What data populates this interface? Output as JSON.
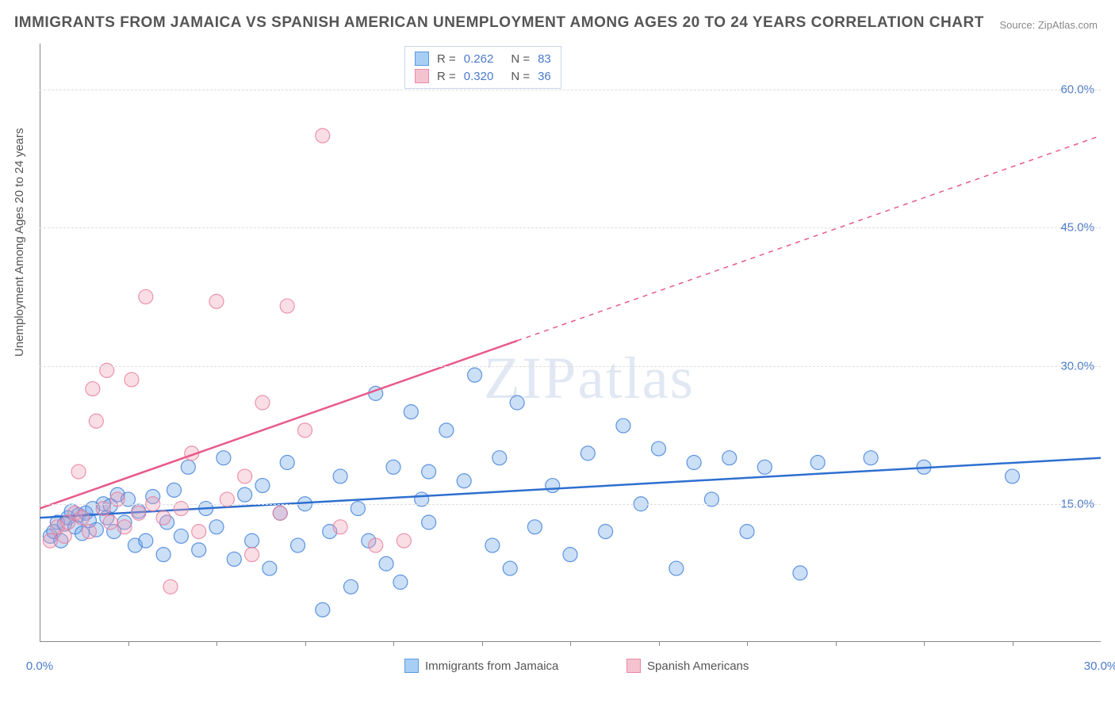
{
  "title": "IMMIGRANTS FROM JAMAICA VS SPANISH AMERICAN UNEMPLOYMENT AMONG AGES 20 TO 24 YEARS CORRELATION CHART",
  "source": "Source: ZipAtlas.com",
  "ylabel": "Unemployment Among Ages 20 to 24 years",
  "watermark": "ZIPatlas",
  "chart": {
    "type": "scatter",
    "xlim": [
      0,
      30
    ],
    "ylim": [
      0,
      65
    ],
    "xticks": [
      0,
      30
    ],
    "xtick_labels": [
      "0.0%",
      "30.0%"
    ],
    "yticks": [
      15,
      30,
      45,
      60
    ],
    "ytick_labels": [
      "15.0%",
      "30.0%",
      "45.0%",
      "60.0%"
    ],
    "grid_color": "#dddddd",
    "axis_color": "#888888",
    "background_color": "#ffffff",
    "tick_color": "#4a7bc8",
    "marker_radius": 9,
    "marker_opacity": 0.35,
    "marker_stroke_opacity": 0.8,
    "line_width": 2.5,
    "minor_ticks_x": [
      2.5,
      5,
      7.5,
      10,
      12.5,
      15,
      17.5,
      20,
      22.5,
      25,
      27.5
    ],
    "series": [
      {
        "name": "Immigrants from Jamaica",
        "color": "#6ba3e8",
        "stroke": "#3b7dd8",
        "line_color": "#2e6fd0",
        "R": "0.262",
        "N": "83",
        "trend": {
          "x1": 0,
          "y1": 13.5,
          "x2": 30,
          "y2": 20.0,
          "solid_until_x": 30
        },
        "points": [
          [
            0.3,
            11.5
          ],
          [
            0.4,
            12.0
          ],
          [
            0.5,
            13.0
          ],
          [
            0.6,
            11.0
          ],
          [
            0.7,
            12.8
          ],
          [
            0.8,
            13.5
          ],
          [
            0.9,
            14.2
          ],
          [
            1.0,
            12.5
          ],
          [
            1.1,
            13.8
          ],
          [
            1.2,
            11.8
          ],
          [
            1.3,
            14.0
          ],
          [
            1.4,
            13.2
          ],
          [
            1.5,
            14.5
          ],
          [
            1.6,
            12.2
          ],
          [
            1.8,
            15.0
          ],
          [
            1.9,
            13.5
          ],
          [
            2.0,
            14.8
          ],
          [
            2.1,
            12.0
          ],
          [
            2.2,
            16.0
          ],
          [
            2.4,
            13.0
          ],
          [
            2.5,
            15.5
          ],
          [
            2.7,
            10.5
          ],
          [
            2.8,
            14.2
          ],
          [
            3.0,
            11.0
          ],
          [
            3.2,
            15.8
          ],
          [
            3.5,
            9.5
          ],
          [
            3.6,
            13.0
          ],
          [
            3.8,
            16.5
          ],
          [
            4.0,
            11.5
          ],
          [
            4.2,
            19.0
          ],
          [
            4.5,
            10.0
          ],
          [
            4.7,
            14.5
          ],
          [
            5.0,
            12.5
          ],
          [
            5.2,
            20.0
          ],
          [
            5.5,
            9.0
          ],
          [
            5.8,
            16.0
          ],
          [
            6.0,
            11.0
          ],
          [
            6.3,
            17.0
          ],
          [
            6.5,
            8.0
          ],
          [
            6.8,
            14.0
          ],
          [
            7.0,
            19.5
          ],
          [
            7.3,
            10.5
          ],
          [
            7.5,
            15.0
          ],
          [
            8.0,
            3.5
          ],
          [
            8.2,
            12.0
          ],
          [
            8.5,
            18.0
          ],
          [
            8.8,
            6.0
          ],
          [
            9.0,
            14.5
          ],
          [
            9.3,
            11.0
          ],
          [
            9.5,
            27.0
          ],
          [
            9.8,
            8.5
          ],
          [
            10.0,
            19.0
          ],
          [
            10.2,
            6.5
          ],
          [
            10.5,
            25.0
          ],
          [
            10.8,
            15.5
          ],
          [
            11.0,
            13.0
          ],
          [
            11.5,
            23.0
          ],
          [
            12.0,
            17.5
          ],
          [
            12.3,
            29.0
          ],
          [
            12.8,
            10.5
          ],
          [
            13.0,
            20.0
          ],
          [
            13.3,
            8.0
          ],
          [
            13.5,
            26.0
          ],
          [
            14.0,
            12.5
          ],
          [
            14.5,
            17.0
          ],
          [
            15.0,
            9.5
          ],
          [
            15.5,
            20.5
          ],
          [
            16.0,
            12.0
          ],
          [
            16.5,
            23.5
          ],
          [
            17.0,
            15.0
          ],
          [
            17.5,
            21.0
          ],
          [
            18.0,
            8.0
          ],
          [
            18.5,
            19.5
          ],
          [
            19.0,
            15.5
          ],
          [
            19.5,
            20.0
          ],
          [
            20.0,
            12.0
          ],
          [
            20.5,
            19.0
          ],
          [
            21.5,
            7.5
          ],
          [
            22.0,
            19.5
          ],
          [
            23.5,
            20.0
          ],
          [
            25.0,
            19.0
          ],
          [
            27.5,
            18.0
          ],
          [
            11.0,
            18.5
          ]
        ]
      },
      {
        "name": "Spanish Americans",
        "color": "#f2a0b8",
        "stroke": "#e87a9a",
        "line_color": "#e85a8a",
        "R": "0.320",
        "N": "36",
        "trend": {
          "x1": 0,
          "y1": 14.5,
          "x2": 30,
          "y2": 55.0,
          "solid_until_x": 13.5
        },
        "points": [
          [
            0.3,
            11.0
          ],
          [
            0.5,
            12.5
          ],
          [
            0.7,
            11.5
          ],
          [
            0.8,
            13.0
          ],
          [
            1.0,
            14.0
          ],
          [
            1.1,
            18.5
          ],
          [
            1.2,
            13.5
          ],
          [
            1.4,
            12.0
          ],
          [
            1.5,
            27.5
          ],
          [
            1.6,
            24.0
          ],
          [
            1.8,
            14.5
          ],
          [
            1.9,
            29.5
          ],
          [
            2.0,
            13.0
          ],
          [
            2.2,
            15.5
          ],
          [
            2.4,
            12.5
          ],
          [
            2.6,
            28.5
          ],
          [
            2.8,
            14.0
          ],
          [
            3.0,
            37.5
          ],
          [
            3.2,
            15.0
          ],
          [
            3.5,
            13.5
          ],
          [
            3.7,
            6.0
          ],
          [
            4.0,
            14.5
          ],
          [
            4.3,
            20.5
          ],
          [
            4.5,
            12.0
          ],
          [
            5.0,
            37.0
          ],
          [
            5.3,
            15.5
          ],
          [
            5.8,
            18.0
          ],
          [
            6.0,
            9.5
          ],
          [
            6.3,
            26.0
          ],
          [
            6.8,
            14.0
          ],
          [
            7.0,
            36.5
          ],
          [
            7.5,
            23.0
          ],
          [
            8.0,
            55.0
          ],
          [
            8.5,
            12.5
          ],
          [
            9.5,
            10.5
          ],
          [
            10.3,
            11.0
          ]
        ]
      }
    ]
  },
  "bottom_legend": [
    {
      "label": "Immigrants from Jamaica",
      "fill": "#a8cef5",
      "border": "#5a9ae0"
    },
    {
      "label": "Spanish Americans",
      "fill": "#f5c2d0",
      "border": "#e88aa5"
    }
  ]
}
